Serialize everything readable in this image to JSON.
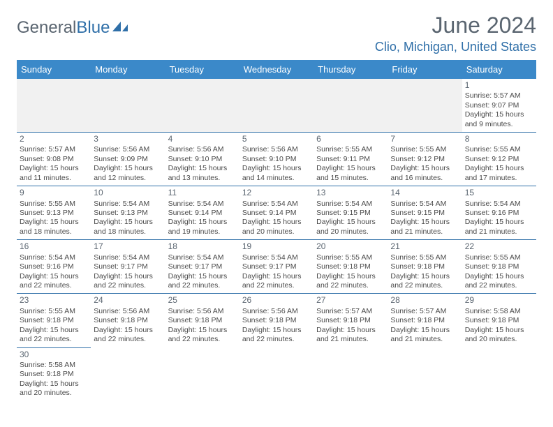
{
  "logo": {
    "text1": "General",
    "text2": "Blue"
  },
  "title": "June 2024",
  "location": "Clio, Michigan, United States",
  "colors": {
    "header_bg": "#3b89c9",
    "accent": "#2f6fa8",
    "text_muted": "#5a6570",
    "text_body": "#4a4a4a",
    "blank_bg": "#f1f1f1"
  },
  "fonts": {
    "title_size": 32,
    "location_size": 18,
    "day_header_size": 13,
    "cell_size": 10.5
  },
  "day_headers": [
    "Sunday",
    "Monday",
    "Tuesday",
    "Wednesday",
    "Thursday",
    "Friday",
    "Saturday"
  ],
  "weeks": [
    [
      null,
      null,
      null,
      null,
      null,
      null,
      {
        "n": "1",
        "sr": "Sunrise: 5:57 AM",
        "ss": "Sunset: 9:07 PM",
        "d1": "Daylight: 15 hours",
        "d2": "and 9 minutes."
      }
    ],
    [
      {
        "n": "2",
        "sr": "Sunrise: 5:57 AM",
        "ss": "Sunset: 9:08 PM",
        "d1": "Daylight: 15 hours",
        "d2": "and 11 minutes."
      },
      {
        "n": "3",
        "sr": "Sunrise: 5:56 AM",
        "ss": "Sunset: 9:09 PM",
        "d1": "Daylight: 15 hours",
        "d2": "and 12 minutes."
      },
      {
        "n": "4",
        "sr": "Sunrise: 5:56 AM",
        "ss": "Sunset: 9:10 PM",
        "d1": "Daylight: 15 hours",
        "d2": "and 13 minutes."
      },
      {
        "n": "5",
        "sr": "Sunrise: 5:56 AM",
        "ss": "Sunset: 9:10 PM",
        "d1": "Daylight: 15 hours",
        "d2": "and 14 minutes."
      },
      {
        "n": "6",
        "sr": "Sunrise: 5:55 AM",
        "ss": "Sunset: 9:11 PM",
        "d1": "Daylight: 15 hours",
        "d2": "and 15 minutes."
      },
      {
        "n": "7",
        "sr": "Sunrise: 5:55 AM",
        "ss": "Sunset: 9:12 PM",
        "d1": "Daylight: 15 hours",
        "d2": "and 16 minutes."
      },
      {
        "n": "8",
        "sr": "Sunrise: 5:55 AM",
        "ss": "Sunset: 9:12 PM",
        "d1": "Daylight: 15 hours",
        "d2": "and 17 minutes."
      }
    ],
    [
      {
        "n": "9",
        "sr": "Sunrise: 5:55 AM",
        "ss": "Sunset: 9:13 PM",
        "d1": "Daylight: 15 hours",
        "d2": "and 18 minutes."
      },
      {
        "n": "10",
        "sr": "Sunrise: 5:54 AM",
        "ss": "Sunset: 9:13 PM",
        "d1": "Daylight: 15 hours",
        "d2": "and 18 minutes."
      },
      {
        "n": "11",
        "sr": "Sunrise: 5:54 AM",
        "ss": "Sunset: 9:14 PM",
        "d1": "Daylight: 15 hours",
        "d2": "and 19 minutes."
      },
      {
        "n": "12",
        "sr": "Sunrise: 5:54 AM",
        "ss": "Sunset: 9:14 PM",
        "d1": "Daylight: 15 hours",
        "d2": "and 20 minutes."
      },
      {
        "n": "13",
        "sr": "Sunrise: 5:54 AM",
        "ss": "Sunset: 9:15 PM",
        "d1": "Daylight: 15 hours",
        "d2": "and 20 minutes."
      },
      {
        "n": "14",
        "sr": "Sunrise: 5:54 AM",
        "ss": "Sunset: 9:15 PM",
        "d1": "Daylight: 15 hours",
        "d2": "and 21 minutes."
      },
      {
        "n": "15",
        "sr": "Sunrise: 5:54 AM",
        "ss": "Sunset: 9:16 PM",
        "d1": "Daylight: 15 hours",
        "d2": "and 21 minutes."
      }
    ],
    [
      {
        "n": "16",
        "sr": "Sunrise: 5:54 AM",
        "ss": "Sunset: 9:16 PM",
        "d1": "Daylight: 15 hours",
        "d2": "and 22 minutes."
      },
      {
        "n": "17",
        "sr": "Sunrise: 5:54 AM",
        "ss": "Sunset: 9:17 PM",
        "d1": "Daylight: 15 hours",
        "d2": "and 22 minutes."
      },
      {
        "n": "18",
        "sr": "Sunrise: 5:54 AM",
        "ss": "Sunset: 9:17 PM",
        "d1": "Daylight: 15 hours",
        "d2": "and 22 minutes."
      },
      {
        "n": "19",
        "sr": "Sunrise: 5:54 AM",
        "ss": "Sunset: 9:17 PM",
        "d1": "Daylight: 15 hours",
        "d2": "and 22 minutes."
      },
      {
        "n": "20",
        "sr": "Sunrise: 5:55 AM",
        "ss": "Sunset: 9:18 PM",
        "d1": "Daylight: 15 hours",
        "d2": "and 22 minutes."
      },
      {
        "n": "21",
        "sr": "Sunrise: 5:55 AM",
        "ss": "Sunset: 9:18 PM",
        "d1": "Daylight: 15 hours",
        "d2": "and 22 minutes."
      },
      {
        "n": "22",
        "sr": "Sunrise: 5:55 AM",
        "ss": "Sunset: 9:18 PM",
        "d1": "Daylight: 15 hours",
        "d2": "and 22 minutes."
      }
    ],
    [
      {
        "n": "23",
        "sr": "Sunrise: 5:55 AM",
        "ss": "Sunset: 9:18 PM",
        "d1": "Daylight: 15 hours",
        "d2": "and 22 minutes."
      },
      {
        "n": "24",
        "sr": "Sunrise: 5:56 AM",
        "ss": "Sunset: 9:18 PM",
        "d1": "Daylight: 15 hours",
        "d2": "and 22 minutes."
      },
      {
        "n": "25",
        "sr": "Sunrise: 5:56 AM",
        "ss": "Sunset: 9:18 PM",
        "d1": "Daylight: 15 hours",
        "d2": "and 22 minutes."
      },
      {
        "n": "26",
        "sr": "Sunrise: 5:56 AM",
        "ss": "Sunset: 9:18 PM",
        "d1": "Daylight: 15 hours",
        "d2": "and 22 minutes."
      },
      {
        "n": "27",
        "sr": "Sunrise: 5:57 AM",
        "ss": "Sunset: 9:18 PM",
        "d1": "Daylight: 15 hours",
        "d2": "and 21 minutes."
      },
      {
        "n": "28",
        "sr": "Sunrise: 5:57 AM",
        "ss": "Sunset: 9:18 PM",
        "d1": "Daylight: 15 hours",
        "d2": "and 21 minutes."
      },
      {
        "n": "29",
        "sr": "Sunrise: 5:58 AM",
        "ss": "Sunset: 9:18 PM",
        "d1": "Daylight: 15 hours",
        "d2": "and 20 minutes."
      }
    ],
    [
      {
        "n": "30",
        "sr": "Sunrise: 5:58 AM",
        "ss": "Sunset: 9:18 PM",
        "d1": "Daylight: 15 hours",
        "d2": "and 20 minutes."
      },
      null,
      null,
      null,
      null,
      null,
      null
    ]
  ]
}
